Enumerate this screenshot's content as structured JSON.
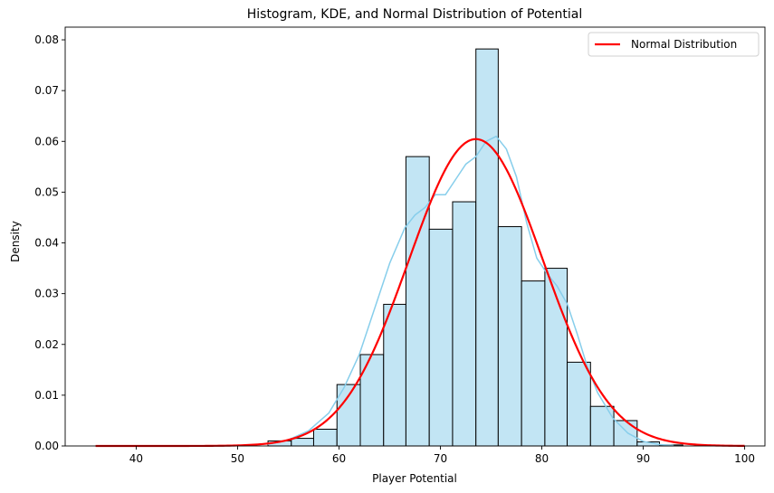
{
  "chart_data": {
    "type": "histogram",
    "title": "Histogram, KDE, and Normal Distribution of Potential",
    "xlabel": "Player Potential",
    "ylabel": "Density",
    "xlim": [
      33,
      102
    ],
    "ylim": [
      0,
      0.0825
    ],
    "xticks": [
      40,
      50,
      60,
      70,
      80,
      90,
      100
    ],
    "yticks": [
      0.0,
      0.01,
      0.02,
      0.03,
      0.04,
      0.05,
      0.06,
      0.07,
      0.08
    ],
    "ytick_labels": [
      "0.00",
      "0.01",
      "0.02",
      "0.03",
      "0.04",
      "0.05",
      "0.06",
      "0.07",
      "0.08"
    ],
    "grid": false,
    "legend": {
      "position": "top-right",
      "entries": [
        "Normal Distribution"
      ]
    },
    "colors": {
      "bars": "#c2e5f4",
      "bar_edge": "#000000",
      "kde": "#87ceeb",
      "normal": "#ff0000"
    },
    "bins": [
      {
        "x0": 53.0,
        "x1": 55.3,
        "density": 0.001
      },
      {
        "x0": 55.3,
        "x1": 57.5,
        "density": 0.0015
      },
      {
        "x0": 57.5,
        "x1": 59.8,
        "density": 0.0033
      },
      {
        "x0": 59.8,
        "x1": 62.1,
        "density": 0.0121
      },
      {
        "x0": 62.1,
        "x1": 64.4,
        "density": 0.018
      },
      {
        "x0": 64.4,
        "x1": 66.6,
        "density": 0.0279
      },
      {
        "x0": 66.6,
        "x1": 68.9,
        "density": 0.057
      },
      {
        "x0": 68.9,
        "x1": 71.2,
        "density": 0.0427
      },
      {
        "x0": 71.2,
        "x1": 73.5,
        "density": 0.0481
      },
      {
        "x0": 73.5,
        "x1": 75.7,
        "density": 0.0782
      },
      {
        "x0": 75.7,
        "x1": 78.0,
        "density": 0.0432
      },
      {
        "x0": 78.0,
        "x1": 80.3,
        "density": 0.0325
      },
      {
        "x0": 80.3,
        "x1": 82.5,
        "density": 0.035
      },
      {
        "x0": 82.5,
        "x1": 84.8,
        "density": 0.0165
      },
      {
        "x0": 84.8,
        "x1": 87.1,
        "density": 0.0078
      },
      {
        "x0": 87.1,
        "x1": 89.4,
        "density": 0.005
      },
      {
        "x0": 89.4,
        "x1": 91.6,
        "density": 0.0008
      },
      {
        "x0": 91.6,
        "x1": 93.9,
        "density": 0.0002
      }
    ],
    "kde": {
      "x": [
        53,
        55,
        57,
        59,
        60.5,
        62,
        63.5,
        65,
        66.5,
        67.5,
        68.5,
        69.5,
        70.5,
        71.5,
        72.5,
        73.5,
        74.5,
        75.5,
        76.5,
        77.5,
        78.5,
        79.5,
        80.5,
        81.5,
        82.5,
        83.5,
        84.5,
        85.5,
        87,
        88.5,
        90,
        91.5,
        93
      ],
      "y": [
        0.0003,
        0.0012,
        0.003,
        0.0065,
        0.0115,
        0.018,
        0.027,
        0.036,
        0.043,
        0.0455,
        0.047,
        0.0495,
        0.0495,
        0.0525,
        0.0555,
        0.057,
        0.06,
        0.061,
        0.0585,
        0.053,
        0.044,
        0.037,
        0.034,
        0.0315,
        0.028,
        0.022,
        0.0155,
        0.0105,
        0.0055,
        0.0025,
        0.0009,
        0.0003,
        0.0001
      ]
    },
    "normal": {
      "mean": 73.5,
      "std": 6.6,
      "x_range": [
        36,
        100
      ]
    }
  }
}
